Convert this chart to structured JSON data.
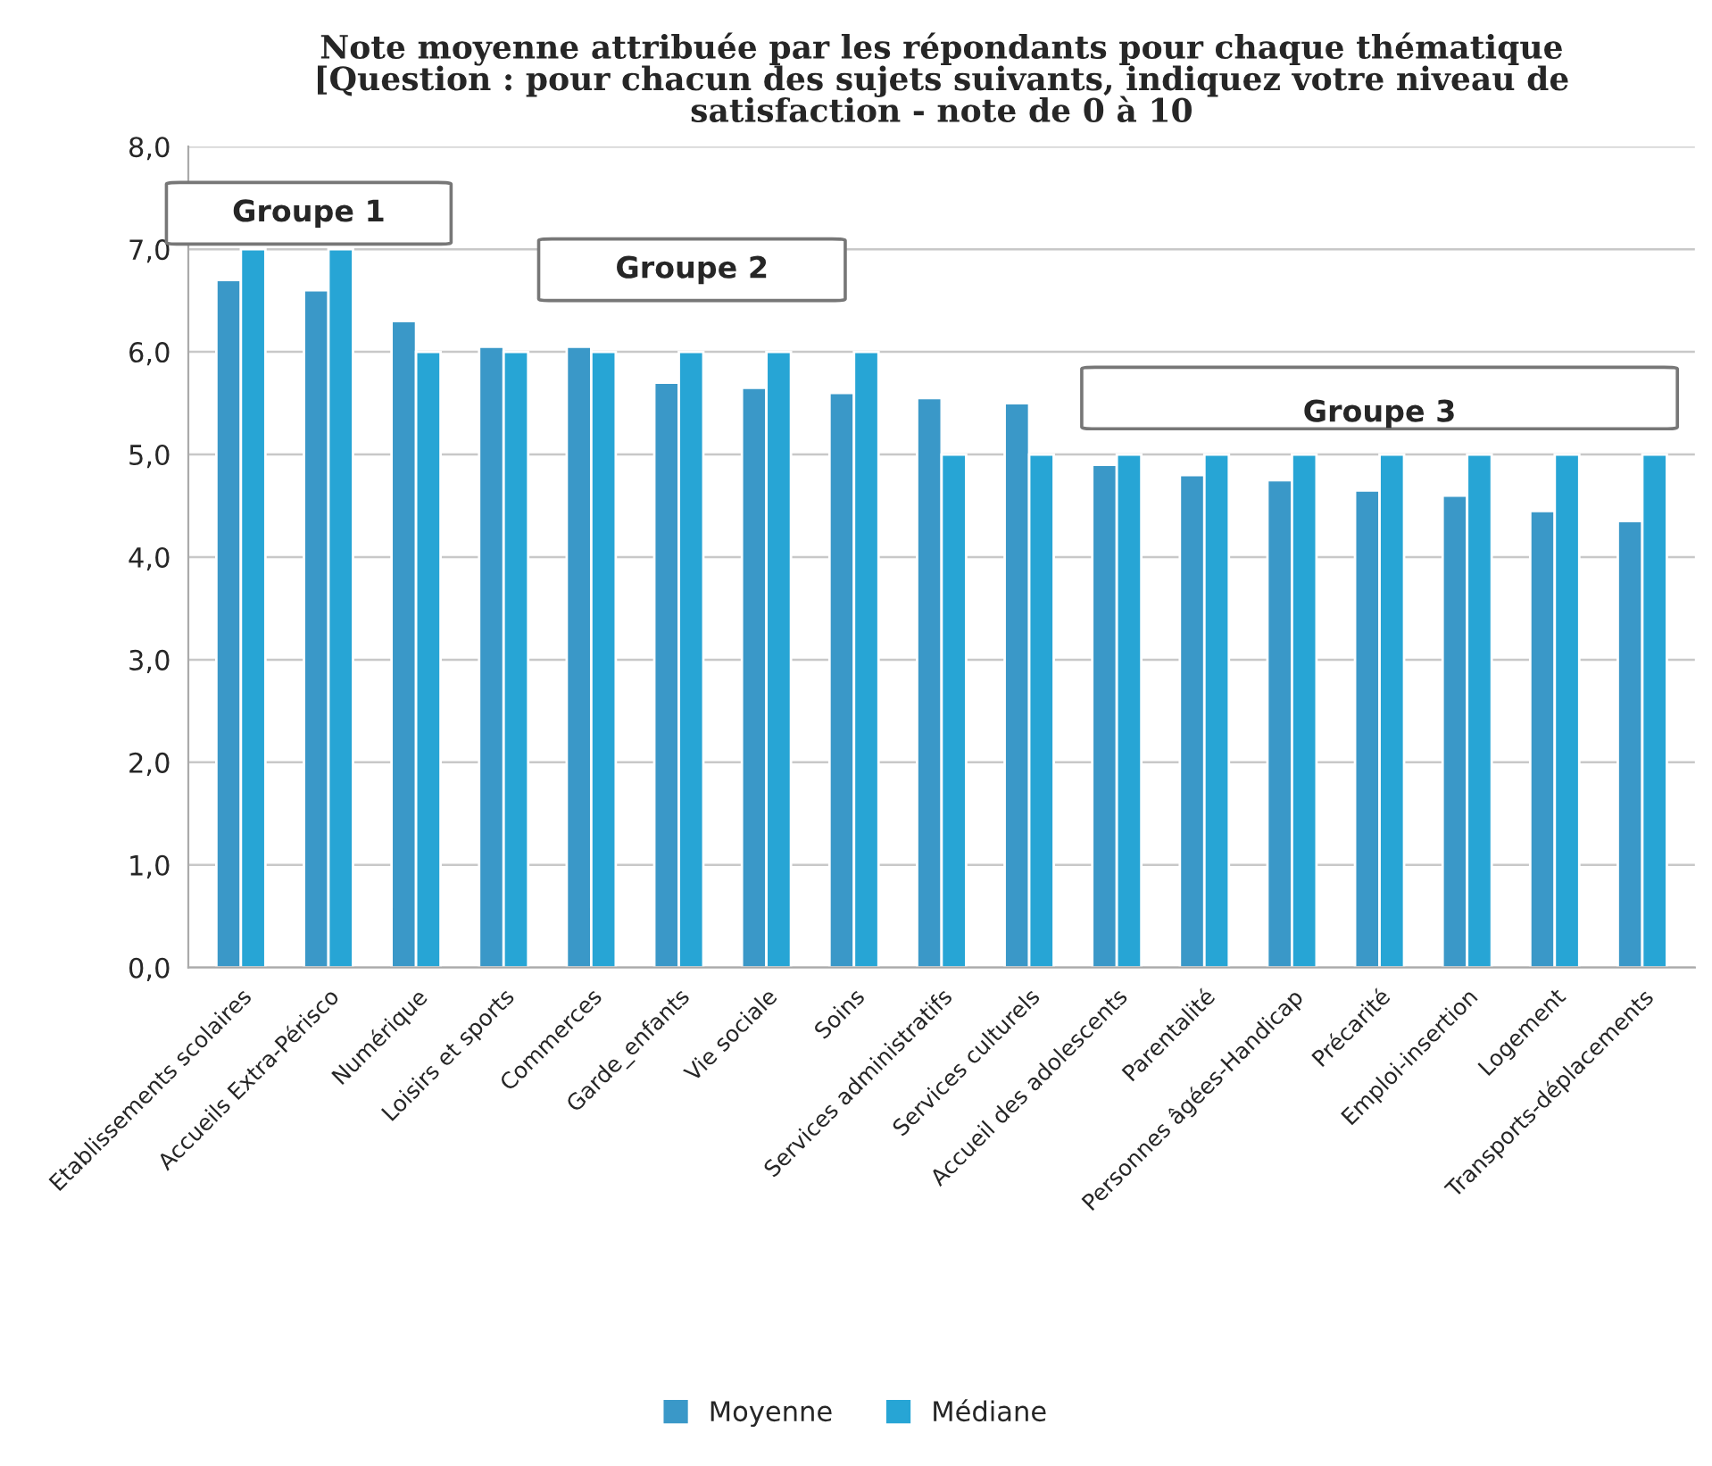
{
  "chart_data": {
    "type": "bar",
    "title": "Note moyenne attribuée par les répondants pour chaque thématique\n[Question : pour chacun des sujets suivants, indiquez votre niveau de\nsatisfaction - note de 0 à 10",
    "categories": [
      "Etablissements scolaires",
      "Accueils Extra-Périsco",
      "Numérique",
      "Loisirs et sports",
      "Commerces",
      "Garde_enfants",
      "Vie sociale",
      "Soins",
      "Services administratifs",
      "Services culturels",
      "Accueil des adolescents",
      "Parentalité",
      "Personnes âgées-Handicap",
      "Précarité",
      "Emploi-insertion",
      "Logement",
      "Transports-déplacements"
    ],
    "series": [
      {
        "name": "Moyenne",
        "color": "#3a98c8",
        "values": [
          6.7,
          6.6,
          6.3,
          6.05,
          6.05,
          5.7,
          5.65,
          5.6,
          5.55,
          5.5,
          4.9,
          4.8,
          4.75,
          4.65,
          4.6,
          4.45,
          4.35
        ]
      },
      {
        "name": "Médiane",
        "color": "#27a5d5",
        "values": [
          7,
          7,
          6,
          6,
          6,
          6,
          6,
          6,
          5,
          5,
          5,
          5,
          5,
          5,
          5,
          5,
          5
        ]
      }
    ],
    "ylim": [
      0,
      8
    ],
    "yticks": [
      {
        "value": 0,
        "label": "0,0"
      },
      {
        "value": 1,
        "label": "1,0"
      },
      {
        "value": 2,
        "label": "2,0"
      },
      {
        "value": 3,
        "label": "3,0"
      },
      {
        "value": 4,
        "label": "4,0"
      },
      {
        "value": 5,
        "label": "5,0"
      },
      {
        "value": 6,
        "label": "6,0"
      },
      {
        "value": 7,
        "label": "7,0"
      },
      {
        "value": 8,
        "label": "8,0"
      }
    ],
    "grid": "y",
    "legend": "bottom",
    "annotations": [
      "Groupe 1",
      "Groupe 2",
      "Groupe 3"
    ]
  }
}
